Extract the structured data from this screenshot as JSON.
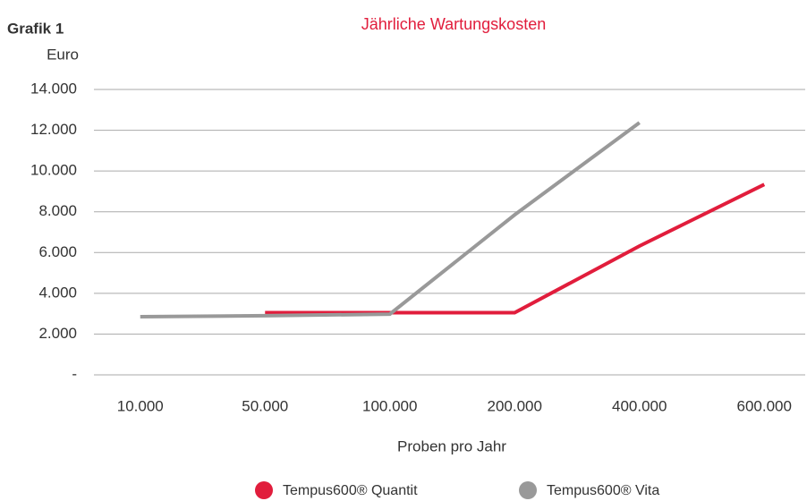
{
  "chart_data": {
    "type": "line",
    "figure_label": "Grafik 1",
    "title": "Jährliche Wartungskosten",
    "y_label": "Euro",
    "x_label": "Proben pro Jahr",
    "categories": [
      "10.000",
      "50.000",
      "100.000",
      "200.000",
      "400.000",
      "600.000"
    ],
    "series": [
      {
        "name": "Tempus600® Quantit",
        "color": "#e11d3c",
        "values": [
          null,
          3050,
          3050,
          3050,
          6320,
          9340
        ]
      },
      {
        "name": "Tempus600® Vita",
        "color": "#999999",
        "values": [
          2850,
          2900,
          2980,
          7850,
          12370,
          null
        ]
      }
    ],
    "ylim": [
      0,
      14000
    ],
    "yticks": [
      {
        "value": 0,
        "label": "-"
      },
      {
        "value": 2000,
        "label": "2.000"
      },
      {
        "value": 4000,
        "label": "4.000"
      },
      {
        "value": 6000,
        "label": "6.000"
      },
      {
        "value": 8000,
        "label": "8.000"
      },
      {
        "value": 10000,
        "label": "10.000"
      },
      {
        "value": 12000,
        "label": "12.000"
      },
      {
        "value": 14000,
        "label": "14.000"
      }
    ],
    "grid": true,
    "legend": "bottom"
  }
}
